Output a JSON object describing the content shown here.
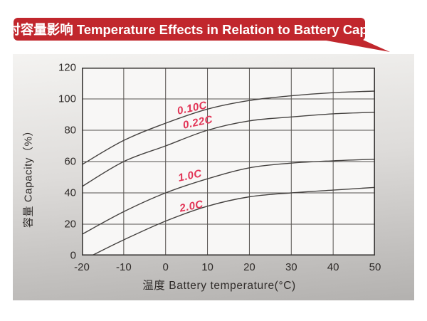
{
  "banner": {
    "text": "温度对容量影响 Temperature Effects in Relation to Battery Capacity",
    "bg_color": "#c1272d",
    "text_color": "#ffffff"
  },
  "chart_data": {
    "type": "line",
    "title": "温度对容量影响 Temperature Effects in Relation to Battery Capacity",
    "xlabel": "温度  Battery temperature(°C)",
    "ylabel": "容量 Capacity（%）",
    "xlim": [
      -20,
      50
    ],
    "ylim": [
      0,
      120
    ],
    "x_ticks": [
      -20,
      -10,
      0,
      10,
      20,
      30,
      40,
      50
    ],
    "y_ticks": [
      0,
      20,
      40,
      60,
      80,
      100,
      120
    ],
    "grid": true,
    "legend_position": "inline-labels",
    "line_color": "#454240",
    "grid_color": "#55514e",
    "frame_color": "#3c3a38",
    "label_color": "#e23456",
    "series": [
      {
        "name": "0.10C",
        "points": [
          [
            -20,
            58
          ],
          [
            -10,
            73.5
          ],
          [
            0,
            84.5
          ],
          [
            10,
            93.5
          ],
          [
            20,
            99
          ],
          [
            30,
            102
          ],
          [
            40,
            104
          ],
          [
            50,
            105
          ]
        ],
        "label": {
          "x": 6.3,
          "y": 94,
          "angle": -12
        }
      },
      {
        "name": "0.22C",
        "points": [
          [
            -20,
            44
          ],
          [
            -10,
            60
          ],
          [
            0,
            70
          ],
          [
            10,
            80
          ],
          [
            20,
            86
          ],
          [
            30,
            88.5
          ],
          [
            40,
            90.5
          ],
          [
            50,
            91.5
          ]
        ],
        "label": {
          "x": 7.7,
          "y": 85,
          "angle": -12
        }
      },
      {
        "name": "1.0C",
        "points": [
          [
            -20,
            13.5
          ],
          [
            -10,
            28
          ],
          [
            0,
            40
          ],
          [
            10,
            49
          ],
          [
            20,
            56
          ],
          [
            30,
            59
          ],
          [
            40,
            60.5
          ],
          [
            50,
            61.5
          ]
        ],
        "label": {
          "x": 5.8,
          "y": 51,
          "angle": -12
        }
      },
      {
        "name": "2.0C",
        "points": [
          [
            -17.6,
            0
          ],
          [
            -10,
            10
          ],
          [
            0,
            22
          ],
          [
            10,
            31.5
          ],
          [
            20,
            37.5
          ],
          [
            30,
            40
          ],
          [
            40,
            41.8
          ],
          [
            50,
            43.5
          ]
        ],
        "label": {
          "x": 6.2,
          "y": 31.5,
          "angle": -11
        }
      }
    ]
  }
}
